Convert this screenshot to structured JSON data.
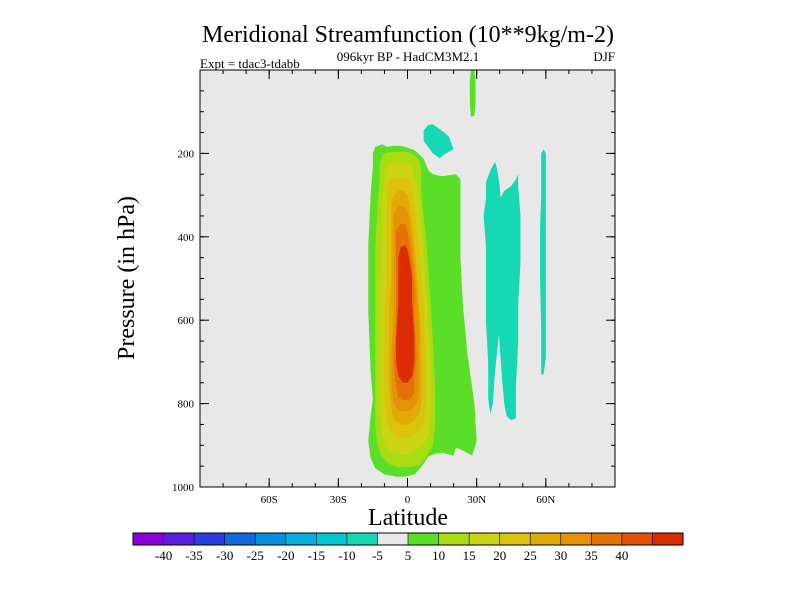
{
  "chart_data": {
    "type": "heatmap",
    "title": "Meridional Streamfunction (10**9kg/m-2)",
    "subtitle": "096kyr BP - HadCM3M2.1",
    "experiment": "Expt = tdac3-tdabb",
    "season": "DJF",
    "xlabel": "Latitude",
    "ylabel": "Pressure (in hPa)",
    "xlim": [
      -90,
      90
    ],
    "ylim": [
      1000,
      0
    ],
    "x_ticks": [
      {
        "value": -60,
        "label": "60S"
      },
      {
        "value": -30,
        "label": "30S"
      },
      {
        "value": 0,
        "label": "0"
      },
      {
        "value": 30,
        "label": "30N"
      },
      {
        "value": 60,
        "label": "60N"
      }
    ],
    "y_ticks": [
      {
        "value": 200,
        "label": "200"
      },
      {
        "value": 400,
        "label": "400"
      },
      {
        "value": 600,
        "label": "600"
      },
      {
        "value": 800,
        "label": "800"
      },
      {
        "value": 1000,
        "label": "1000"
      }
    ],
    "background_color": "#e8e8e8",
    "colorbar": {
      "colors": [
        "#8a00dc",
        "#5a1ee0",
        "#2a3ee6",
        "#1268dc",
        "#0a8ee0",
        "#08aedc",
        "#00c8d2",
        "#16d8b4",
        "#e8e8e8",
        "#5ade28",
        "#a8dc10",
        "#cad414",
        "#dcc20a",
        "#e2aa06",
        "#e69206",
        "#e47206",
        "#e45006",
        "#dc2c04"
      ],
      "labels": [
        "-40",
        "-35",
        "-30",
        "-25",
        "-20",
        "-15",
        "-10",
        "-5",
        "5",
        "10",
        "15",
        "20",
        "25",
        "30",
        "35",
        "40"
      ]
    },
    "contours": [
      {
        "level": "5 to 10",
        "color": "#5ade28",
        "points": [
          [
            -16,
            830
          ],
          [
            -15,
            790
          ],
          [
            -16,
            720
          ],
          [
            -17,
            580
          ],
          [
            -17,
            420
          ],
          [
            -16,
            300
          ],
          [
            -15,
            230
          ],
          [
            -15,
            200
          ],
          [
            -14,
            185
          ],
          [
            -11,
            178
          ],
          [
            -9,
            184
          ],
          [
            -6,
            182
          ],
          [
            -3,
            182
          ],
          [
            0,
            186
          ],
          [
            3,
            192
          ],
          [
            5,
            202
          ],
          [
            7,
            213
          ],
          [
            9,
            240
          ],
          [
            11,
            250
          ],
          [
            15,
            255
          ],
          [
            21,
            250
          ],
          [
            23,
            262
          ],
          [
            23,
            360
          ],
          [
            23,
            450
          ],
          [
            24,
            560
          ],
          [
            26,
            680
          ],
          [
            29,
            800
          ],
          [
            30,
            890
          ],
          [
            28,
            925
          ],
          [
            25,
            915
          ],
          [
            21,
            905
          ],
          [
            20,
            925
          ],
          [
            18,
            922
          ],
          [
            15,
            918
          ],
          [
            12,
            920
          ],
          [
            9,
            927
          ],
          [
            6,
            952
          ],
          [
            3,
            970
          ],
          [
            -1,
            975
          ],
          [
            -5,
            975
          ],
          [
            -10,
            970
          ],
          [
            -14,
            955
          ],
          [
            -16,
            930
          ],
          [
            -17,
            890
          ]
        ]
      },
      {
        "level": "5 to 10",
        "color": "#5ade28",
        "points": [
          [
            27.5,
            0
          ],
          [
            29,
            0
          ],
          [
            29.5,
            30
          ],
          [
            29.5,
            80
          ],
          [
            29,
            110
          ],
          [
            27.5,
            112
          ],
          [
            27,
            80
          ],
          [
            27,
            30
          ]
        ]
      },
      {
        "level": "-5 to -10",
        "color": "#16d8b4",
        "points": [
          [
            7,
            145
          ],
          [
            9,
            132
          ],
          [
            11,
            130
          ],
          [
            14,
            142
          ],
          [
            16,
            150
          ],
          [
            18,
            160
          ],
          [
            19,
            175
          ],
          [
            20,
            190
          ],
          [
            16,
            202
          ],
          [
            14,
            212
          ],
          [
            11,
            200
          ],
          [
            9,
            185
          ],
          [
            7,
            170
          ]
        ]
      },
      {
        "level": "-5 to -10",
        "color": "#16d8b4",
        "points": [
          [
            33,
            350
          ],
          [
            34,
            310
          ],
          [
            34,
            270
          ],
          [
            36,
            240
          ],
          [
            38,
            220
          ],
          [
            39,
            240
          ],
          [
            40,
            280
          ],
          [
            41,
            350
          ],
          [
            41,
            430
          ],
          [
            40,
            520
          ],
          [
            40,
            620
          ],
          [
            38,
            720
          ],
          [
            37,
            800
          ],
          [
            36,
            825
          ],
          [
            35,
            790
          ],
          [
            35,
            700
          ],
          [
            34,
            600
          ],
          [
            34,
            500
          ],
          [
            34,
            420
          ]
        ]
      },
      {
        "level": "-5 to -10",
        "color": "#16d8b4",
        "points": [
          [
            39,
            360
          ],
          [
            40,
            310
          ],
          [
            42,
            290
          ],
          [
            45,
            278
          ],
          [
            47,
            262
          ],
          [
            48,
            250
          ],
          [
            48,
            280
          ],
          [
            49,
            350
          ],
          [
            49,
            460
          ],
          [
            48,
            560
          ],
          [
            48,
            650
          ],
          [
            47,
            760
          ],
          [
            47,
            835
          ],
          [
            45,
            840
          ],
          [
            43,
            830
          ],
          [
            42,
            800
          ],
          [
            41,
            740
          ],
          [
            40,
            660
          ],
          [
            39,
            560
          ],
          [
            38,
            460
          ]
        ]
      },
      {
        "level": "-5 to -10",
        "color": "#16d8b4",
        "points": [
          [
            58,
            200
          ],
          [
            59,
            190
          ],
          [
            60,
            200
          ],
          [
            60,
            270
          ],
          [
            60,
            420
          ],
          [
            60,
            540
          ],
          [
            60,
            690
          ],
          [
            59,
            730
          ],
          [
            58,
            730
          ],
          [
            58,
            620
          ],
          [
            57.5,
            500
          ],
          [
            57.5,
            380
          ],
          [
            58,
            300
          ]
        ]
      },
      {
        "level": "10 to 15",
        "color": "#a8dc10",
        "points": [
          [
            -13,
            330
          ],
          [
            -12,
            260
          ],
          [
            -12,
            225
          ],
          [
            -11,
            205
          ],
          [
            -9,
            198
          ],
          [
            -4,
            196
          ],
          [
            0,
            197
          ],
          [
            3,
            204
          ],
          [
            5,
            214
          ],
          [
            6,
            240
          ],
          [
            6,
            300
          ],
          [
            8,
            400
          ],
          [
            9,
            480
          ],
          [
            10,
            560
          ],
          [
            11,
            650
          ],
          [
            12,
            760
          ],
          [
            12,
            850
          ],
          [
            11,
            900
          ],
          [
            10,
            910
          ],
          [
            8,
            930
          ],
          [
            5,
            948
          ],
          [
            1,
            952
          ],
          [
            -4,
            953
          ],
          [
            -8,
            945
          ],
          [
            -11,
            928
          ],
          [
            -13,
            900
          ],
          [
            -14,
            850
          ],
          [
            -14,
            760
          ],
          [
            -14,
            640
          ],
          [
            -14,
            520
          ],
          [
            -14,
            420
          ]
        ]
      },
      {
        "level": "15 to 20",
        "color": "#cad414",
        "points": [
          [
            -11,
            320
          ],
          [
            -10,
            265
          ],
          [
            -10,
            238
          ],
          [
            -8,
            226
          ],
          [
            -5,
            220
          ],
          [
            -1,
            224
          ],
          [
            2,
            232
          ],
          [
            3,
            255
          ],
          [
            5,
            300
          ],
          [
            6,
            380
          ],
          [
            7,
            440
          ],
          [
            8,
            520
          ],
          [
            9,
            600
          ],
          [
            10,
            700
          ],
          [
            10,
            790
          ],
          [
            10,
            850
          ],
          [
            9,
            878
          ],
          [
            7,
            898
          ],
          [
            3,
            916
          ],
          [
            0,
            922
          ],
          [
            -4,
            922
          ],
          [
            -7,
            916
          ],
          [
            -10,
            900
          ],
          [
            -11,
            870
          ],
          [
            -12,
            820
          ],
          [
            -12,
            740
          ],
          [
            -12,
            620
          ],
          [
            -12,
            520
          ],
          [
            -11,
            420
          ]
        ]
      },
      {
        "level": "20 to 25",
        "color": "#dcc20a",
        "points": [
          [
            -9,
            340
          ],
          [
            -9,
            290
          ],
          [
            -8,
            264
          ],
          [
            -5,
            257
          ],
          [
            -1,
            257
          ],
          [
            1,
            265
          ],
          [
            2,
            290
          ],
          [
            3,
            330
          ],
          [
            4,
            380
          ],
          [
            5,
            430
          ],
          [
            6,
            500
          ],
          [
            7,
            580
          ],
          [
            8,
            680
          ],
          [
            8,
            760
          ],
          [
            8,
            820
          ],
          [
            7,
            852
          ],
          [
            4,
            870
          ],
          [
            0,
            882
          ],
          [
            -4,
            880
          ],
          [
            -7,
            866
          ],
          [
            -9,
            840
          ],
          [
            -10,
            790
          ],
          [
            -10,
            700
          ],
          [
            -10,
            600
          ],
          [
            -9,
            500
          ],
          [
            -9,
            420
          ]
        ]
      },
      {
        "level": "25 to 30",
        "color": "#e2aa06",
        "points": [
          [
            -7,
            360
          ],
          [
            -7,
            320
          ],
          [
            -6,
            300
          ],
          [
            -4,
            290
          ],
          [
            -2,
            290
          ],
          [
            0,
            300
          ],
          [
            1,
            330
          ],
          [
            2,
            370
          ],
          [
            3,
            420
          ],
          [
            4,
            480
          ],
          [
            5,
            560
          ],
          [
            6,
            650
          ],
          [
            6,
            740
          ],
          [
            6,
            800
          ],
          [
            5,
            825
          ],
          [
            3,
            840
          ],
          [
            0,
            852
          ],
          [
            -3,
            850
          ],
          [
            -6,
            838
          ],
          [
            -7,
            810
          ],
          [
            -8,
            760
          ],
          [
            -8,
            680
          ],
          [
            -8,
            580
          ],
          [
            -7,
            500
          ],
          [
            -7,
            420
          ]
        ]
      },
      {
        "level": "30 to 35",
        "color": "#e69206",
        "points": [
          [
            -6,
            380
          ],
          [
            -6,
            345
          ],
          [
            -4,
            328
          ],
          [
            -2,
            325
          ],
          [
            0,
            335
          ],
          [
            1,
            370
          ],
          [
            2,
            410
          ],
          [
            3,
            460
          ],
          [
            4,
            530
          ],
          [
            5,
            610
          ],
          [
            5,
            700
          ],
          [
            5,
            770
          ],
          [
            4,
            800
          ],
          [
            2,
            815
          ],
          [
            -1,
            820
          ],
          [
            -4,
            815
          ],
          [
            -6,
            798
          ],
          [
            -7,
            760
          ],
          [
            -7,
            680
          ],
          [
            -6,
            580
          ],
          [
            -6,
            500
          ],
          [
            -6,
            430
          ]
        ]
      },
      {
        "level": "35 to 40",
        "color": "#e47206",
        "points": [
          [
            -5,
            410
          ],
          [
            -5,
            385
          ],
          [
            -3,
            370
          ],
          [
            -1,
            370
          ],
          [
            0,
            385
          ],
          [
            1,
            420
          ],
          [
            2,
            460
          ],
          [
            3,
            520
          ],
          [
            3,
            600
          ],
          [
            4,
            680
          ],
          [
            3,
            740
          ],
          [
            3,
            775
          ],
          [
            1,
            790
          ],
          [
            -2,
            792
          ],
          [
            -4,
            785
          ],
          [
            -5,
            760
          ],
          [
            -6,
            700
          ],
          [
            -5,
            620
          ],
          [
            -5,
            540
          ],
          [
            -5,
            470
          ]
        ]
      },
      {
        "level": "> 40",
        "color": "#dc2c04",
        "points": [
          [
            -4,
            450
          ],
          [
            -3,
            425
          ],
          [
            -1,
            420
          ],
          [
            0,
            430
          ],
          [
            1,
            460
          ],
          [
            2,
            500
          ],
          [
            2,
            560
          ],
          [
            3,
            640
          ],
          [
            3,
            700
          ],
          [
            2,
            735
          ],
          [
            0,
            750
          ],
          [
            -2,
            750
          ],
          [
            -4,
            735
          ],
          [
            -5,
            700
          ],
          [
            -5,
            640
          ],
          [
            -4,
            560
          ],
          [
            -4,
            500
          ]
        ]
      }
    ]
  }
}
